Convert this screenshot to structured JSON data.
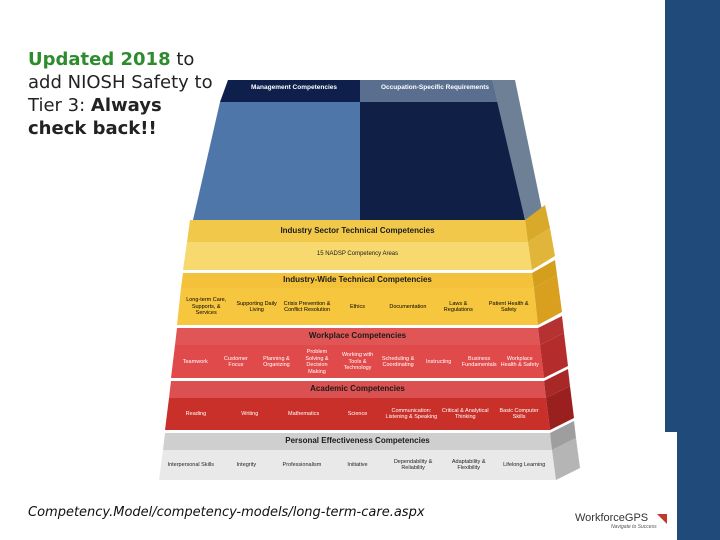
{
  "headline": {
    "part1": "Updated 2018",
    "part2": " to add NIOSH Safety to Tier 3: ",
    "part3": "Always check back!!"
  },
  "pyramid": {
    "tier9": {
      "left_label": "Management Competencies",
      "right_label": "Occupation-Specific Requirements"
    },
    "tier5": {
      "header": "Industry Sector Technical Competencies",
      "sub": "15 NADSP Competency Areas"
    },
    "tier4": {
      "header": "Industry-Wide Technical Competencies",
      "cells": [
        "Long-term Care, Supports, & Services",
        "Supporting Daily Living",
        "Crisis Prevention & Conflict Resolution",
        "Ethics",
        "Documentation",
        "Laws & Regulations",
        "Patient Health & Safety"
      ]
    },
    "tier3": {
      "header": "Workplace Competencies",
      "cells": [
        "Teamwork",
        "Customer Focus",
        "Planning & Organizing",
        "Problem Solving & Decision Making",
        "Working with Tools & Technology",
        "Scheduling & Coordinating",
        "Instructing",
        "Business Fundamentals",
        "Workplace Health & Safety"
      ]
    },
    "tier2": {
      "header": "Academic Competencies",
      "cells": [
        "Reading",
        "Writing",
        "Mathematics",
        "Science",
        "Communication: Listening & Speaking",
        "Critical & Analytical Thinking",
        "Basic Computer Skills"
      ]
    },
    "tier1": {
      "header": "Personal Effectiveness Competencies",
      "cells": [
        "Interpersonal Skills",
        "Integrity",
        "Professionalism",
        "Initiative",
        "Dependability & Reliability",
        "Adaptability & Flexibility",
        "Lifelong Learning"
      ]
    }
  },
  "footer": {
    "url": "Competency.Model/competency-models/long-term-care.aspx"
  },
  "logo": {
    "word": "WorkforceGPS",
    "tag": "Navigate to Success"
  },
  "colors": {
    "sidebar": "#1f4a7a",
    "headline_green": "#2e8b2e"
  }
}
